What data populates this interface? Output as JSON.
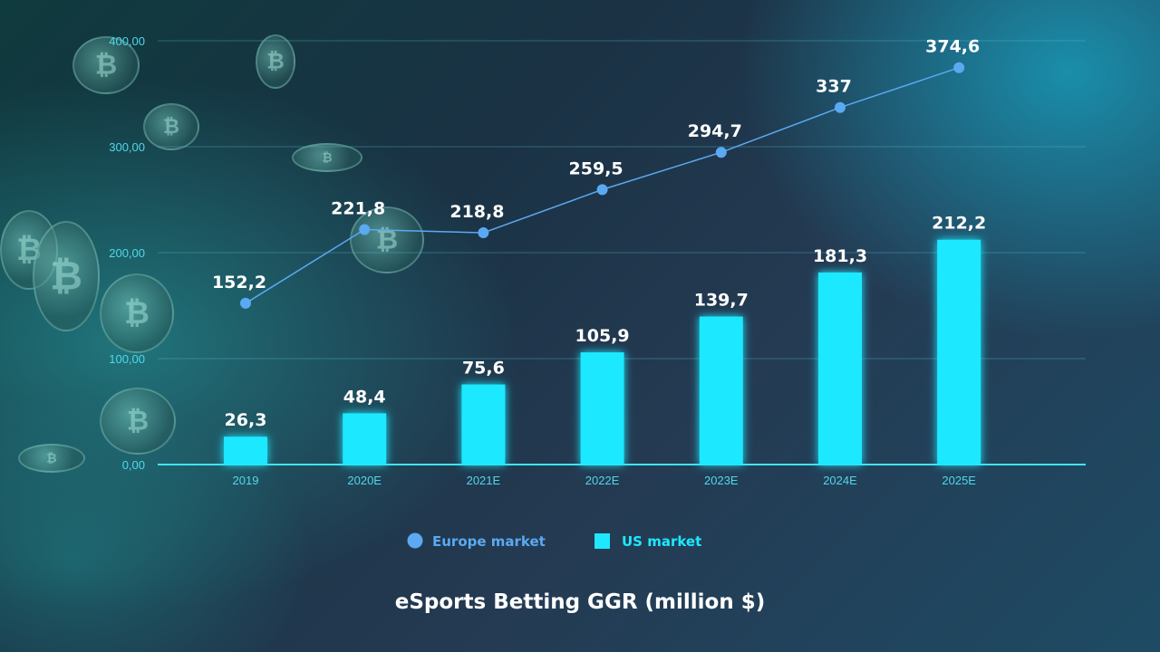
{
  "chart_data": {
    "type": "bar",
    "title": "eSports Betting GGR (million $)",
    "categories": [
      "2019",
      "2020E",
      "2021E",
      "2022E",
      "2023E",
      "2024E",
      "2025E"
    ],
    "ylim": [
      0,
      400
    ],
    "yticks": [
      0,
      100,
      200,
      300,
      400
    ],
    "ytick_labels": [
      "0,00",
      "100,00",
      "200,00",
      "300,00",
      "400,00"
    ],
    "grid": true,
    "legend_placement": "bottom-center",
    "series": [
      {
        "name": "Europe market",
        "type": "line",
        "color": "#5aa9f2",
        "values": [
          152.2,
          221.8,
          218.8,
          259.5,
          294.7,
          337,
          374.6
        ],
        "labels": [
          "152,2",
          "221,8",
          "218,8",
          "259,5",
          "294,7",
          "337",
          "374,6"
        ]
      },
      {
        "name": "US market",
        "type": "bar",
        "color": "#1ee8ff",
        "values": [
          26.3,
          48.4,
          75.6,
          105.9,
          139.7,
          181.3,
          212.2
        ],
        "labels": [
          "26,3",
          "48,4",
          "75,6",
          "105,9",
          "139,7",
          "181,3",
          "212,2"
        ]
      }
    ]
  }
}
